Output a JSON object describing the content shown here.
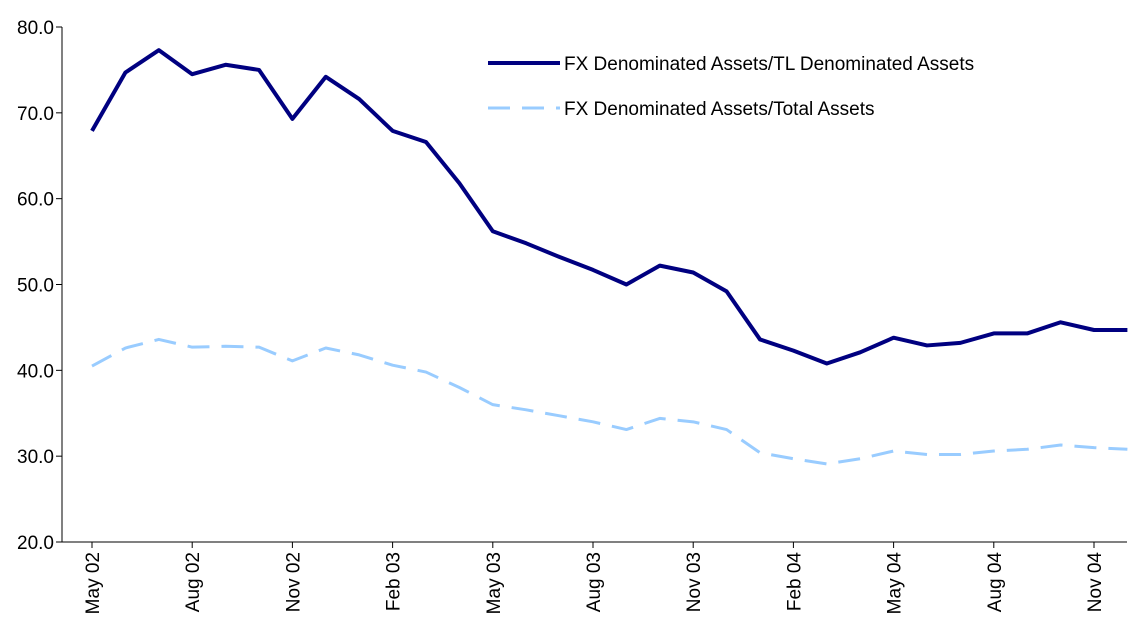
{
  "chart_data": {
    "type": "line",
    "categories": [
      "May 02",
      null,
      null,
      "Aug 02",
      null,
      null,
      "Nov 02",
      null,
      null,
      "Feb 03",
      null,
      null,
      "May 03",
      null,
      null,
      "Aug 03",
      null,
      null,
      "Nov 03",
      null,
      null,
      "Feb 04",
      null,
      null,
      "May 04",
      null,
      null,
      "Aug 04",
      null,
      null,
      "Nov 04",
      null
    ],
    "series": [
      {
        "name": "FX Denominated Assets/TL Denominated Assets",
        "color": "#000080",
        "dash": false,
        "values": [
          67.9,
          74.7,
          77.3,
          74.5,
          75.6,
          75.0,
          69.3,
          74.2,
          71.6,
          67.9,
          66.6,
          61.8,
          56.2,
          54.8,
          53.2,
          51.7,
          50.0,
          52.2,
          51.4,
          49.2,
          43.6,
          42.3,
          40.8,
          42.1,
          43.8,
          42.9,
          43.2,
          44.3,
          44.3,
          45.6,
          44.7,
          44.7
        ]
      },
      {
        "name": "FX Denominated Assets/Total Assets",
        "color": "#99ccff",
        "dash": true,
        "values": [
          40.5,
          42.6,
          43.6,
          42.7,
          42.8,
          42.7,
          41.1,
          42.6,
          41.8,
          40.6,
          39.8,
          38.0,
          36.0,
          35.4,
          34.7,
          34.0,
          33.1,
          34.4,
          34.0,
          33.1,
          30.4,
          29.7,
          29.1,
          29.7,
          30.6,
          30.2,
          30.2,
          30.6,
          30.8,
          31.3,
          31.0,
          30.8
        ]
      }
    ],
    "ylim": [
      20,
      80
    ],
    "yticks": [
      {
        "value": 20,
        "label": "20.0"
      },
      {
        "value": 30,
        "label": "30.0"
      },
      {
        "value": 40,
        "label": "40.0"
      },
      {
        "value": 50,
        "label": "50.0"
      },
      {
        "value": 60,
        "label": "60.0"
      },
      {
        "value": 70,
        "label": "70.0"
      },
      {
        "value": 80,
        "label": "80.0"
      }
    ],
    "grid": false,
    "legend": "upper right"
  }
}
